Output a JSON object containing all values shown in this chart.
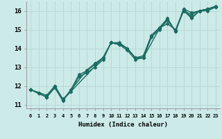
{
  "xlabel": "Humidex (Indice chaleur)",
  "ylabel": "",
  "background_color": "#cceae8",
  "grid_color": "#b8d8d5",
  "line_color": "#1a6b60",
  "xlim": [
    -0.5,
    23.5
  ],
  "ylim": [
    10.8,
    16.5
  ],
  "yticks": [
    11,
    12,
    13,
    14,
    15,
    16
  ],
  "xtick_labels": [
    "0",
    "1",
    "2",
    "3",
    "4",
    "5",
    "6",
    "7",
    "8",
    "9",
    "10",
    "11",
    "12",
    "13",
    "14",
    "15",
    "16",
    "17",
    "18",
    "19",
    "20",
    "21",
    "22",
    "23"
  ],
  "lines": [
    {
      "x": [
        0,
        1,
        2,
        3,
        4,
        5,
        6,
        7,
        8,
        9,
        10,
        11,
        12,
        13,
        14,
        15,
        16,
        17,
        18,
        19,
        20,
        21,
        22,
        23
      ],
      "y": [
        11.8,
        11.6,
        11.4,
        12.0,
        11.3,
        11.7,
        12.5,
        12.7,
        13.0,
        13.4,
        14.3,
        14.3,
        14.0,
        13.5,
        13.5,
        14.6,
        15.0,
        15.5,
        14.9,
        16.0,
        15.8,
        16.0,
        16.0,
        16.2
      ],
      "marker": "D",
      "markersize": 2.5,
      "linewidth": 1.0
    },
    {
      "x": [
        0,
        1,
        2,
        3,
        4,
        5,
        6,
        7,
        8,
        9,
        10,
        11,
        12,
        13,
        14,
        15,
        16,
        17,
        18,
        19,
        20,
        21,
        22,
        23
      ],
      "y": [
        11.8,
        11.6,
        11.4,
        11.9,
        11.2,
        11.8,
        12.6,
        12.8,
        13.15,
        13.5,
        14.3,
        14.2,
        14.0,
        13.5,
        13.6,
        14.7,
        15.1,
        15.3,
        15.0,
        16.0,
        15.6,
        16.0,
        16.1,
        16.2
      ],
      "marker": "D",
      "markersize": 2.5,
      "linewidth": 1.0
    },
    {
      "x": [
        0,
        2,
        3,
        4,
        9,
        10,
        11,
        12,
        13,
        14,
        16,
        17,
        18,
        19,
        20,
        21,
        22,
        23
      ],
      "y": [
        11.8,
        11.5,
        12.0,
        11.25,
        13.5,
        14.3,
        14.25,
        14.0,
        13.5,
        13.5,
        15.05,
        15.55,
        14.9,
        16.1,
        15.65,
        16.0,
        16.1,
        16.25
      ],
      "marker": "D",
      "markersize": 2.5,
      "linewidth": 1.0
    },
    {
      "x": [
        0,
        1,
        2,
        3,
        4,
        7,
        8,
        9,
        10,
        11,
        12,
        13,
        14,
        15,
        16,
        17,
        18,
        19,
        20,
        21,
        22,
        23
      ],
      "y": [
        11.8,
        11.6,
        11.4,
        12.0,
        11.25,
        12.85,
        13.2,
        13.5,
        14.3,
        14.2,
        13.9,
        13.4,
        13.5,
        14.6,
        15.1,
        15.6,
        14.9,
        16.1,
        15.9,
        16.0,
        16.1,
        16.2
      ],
      "marker": "D",
      "markersize": 2.5,
      "linewidth": 1.0
    }
  ]
}
